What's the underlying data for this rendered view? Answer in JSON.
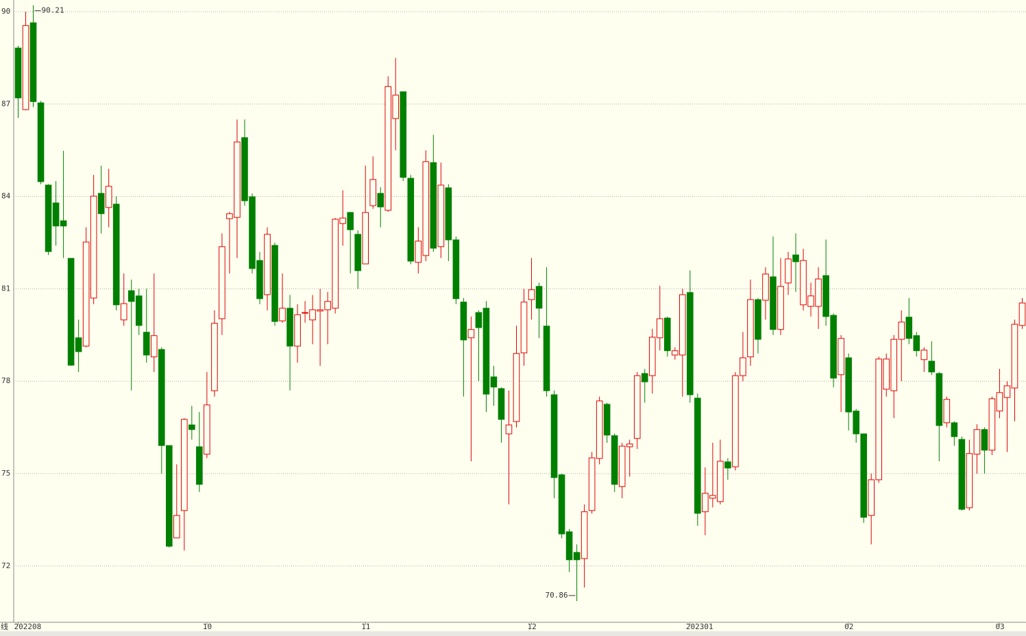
{
  "chart_data": {
    "type": "candlestick",
    "period_label": "日线",
    "categories": [
      "202208",
      null,
      null,
      null,
      null,
      null,
      null,
      null,
      null,
      null,
      null,
      null,
      null,
      null,
      null,
      null,
      null,
      null,
      null,
      null,
      null,
      null,
      null,
      null,
      null,
      "10",
      null,
      null,
      null,
      null,
      null,
      null,
      null,
      null,
      null,
      null,
      null,
      null,
      null,
      null,
      null,
      null,
      null,
      null,
      null,
      null,
      "11",
      null,
      null,
      null,
      null,
      null,
      null,
      null,
      null,
      null,
      null,
      null,
      null,
      null,
      null,
      null,
      null,
      null,
      null,
      null,
      null,
      null,
      "12",
      null,
      null,
      null,
      null,
      null,
      null,
      null,
      null,
      null,
      null,
      null,
      null,
      null,
      null,
      null,
      null,
      null,
      null,
      null,
      null,
      "202301",
      null,
      null,
      null,
      null,
      null,
      null,
      null,
      null,
      null,
      null,
      null,
      null,
      null,
      null,
      null,
      null,
      null,
      null,
      null,
      null,
      "02",
      null,
      null,
      null,
      null,
      null,
      null,
      null,
      null,
      null,
      null,
      null,
      null,
      null,
      null,
      null,
      null,
      null,
      null,
      null,
      "03",
      null,
      null,
      null
    ],
    "open": [
      88.82,
      86.82,
      89.64,
      87.04,
      84.37,
      83.79,
      83.21,
      81.99,
      79.41,
      79.14,
      80.7,
      84.1,
      83.64,
      83.75,
      79.99,
      80.94,
      80.77,
      79.59,
      78.79,
      79.03,
      75.91,
      72.91,
      73.8,
      76.58,
      75.87,
      75.63,
      77.69,
      80.03,
      83.28,
      83.32,
      85.91,
      83.99,
      81.92,
      80.81,
      82.41,
      79.96,
      80.37,
      79.14,
      80.21,
      79.99,
      80.28,
      80.32,
      80.37,
      83.12,
      83.48,
      82.77,
      81.81,
      83.7,
      84.1,
      83.55,
      86.53,
      87.4,
      84.59,
      81.86,
      82.08,
      85.1,
      82.37,
      84.28,
      82.59,
      80.57,
      79.41,
      80.23,
      80.37,
      78.14,
      77.76,
      76.29,
      76.69,
      78.92,
      80.65,
      81.08,
      79.79,
      77.56,
      74.96,
      73.11,
      72.44,
      72.24,
      73.8,
      75.49,
      77.25,
      76.23,
      74.58,
      75.87,
      76.14,
      78.25,
      78.18,
      79.41,
      80.05,
      78.85,
      78.85,
      80.88,
      77.45,
      73.76,
      74.2,
      74.09,
      75.38,
      75.22,
      78.18,
      78.79,
      80.65,
      80.63,
      81.39,
      79.68,
      81.19,
      82.1,
      80.48,
      80.43,
      80.43,
      81.43,
      80.14,
      78.21,
      78.76,
      77.03,
      76.29,
      73.64,
      74.8,
      77.74,
      77.69,
      79.36,
      80.08,
      79.48,
      78.7,
      78.65,
      78.25,
      76.65,
      76.65,
      76.11,
      73.89,
      75.63,
      76.43,
      75.76,
      77.03,
      77.47,
      77.78,
      79.81
    ],
    "high": [
      88.89,
      90.0,
      90.21,
      87.1,
      84.4,
      84.5,
      85.48,
      82.0,
      80.0,
      83.0,
      84.7,
      85.0,
      84.9,
      84.0,
      81.5,
      81.3,
      81.0,
      81.0,
      81.5,
      79.1,
      75.9,
      75.3,
      76.8,
      77.2,
      77.0,
      78.3,
      80.3,
      82.8,
      83.5,
      86.5,
      86.5,
      84.1,
      82.2,
      83.0,
      82.5,
      81.5,
      80.8,
      80.5,
      80.6,
      80.8,
      81.0,
      80.9,
      83.3,
      84.2,
      83.5,
      82.9,
      85.0,
      85.3,
      84.3,
      87.9,
      88.5,
      87.4,
      84.7,
      83.0,
      85.5,
      86.0,
      85.1,
      84.4,
      82.7,
      80.7,
      80.1,
      80.3,
      80.6,
      78.5,
      77.8,
      77.7,
      79.8,
      81.0,
      82.0,
      81.2,
      81.7,
      77.7,
      75.0,
      73.2,
      72.7,
      74.0,
      75.7,
      77.5,
      77.3,
      76.3,
      76.0,
      76.1,
      78.3,
      78.4,
      79.7,
      81.1,
      80.1,
      79.1,
      81.0,
      81.6,
      77.6,
      75.2,
      76.0,
      76.1,
      75.5,
      78.3,
      79.6,
      81.3,
      80.7,
      81.7,
      82.7,
      82.0,
      82.2,
      82.8,
      82.3,
      81.2,
      81.7,
      82.6,
      80.2,
      79.5,
      78.9,
      77.1,
      76.3,
      75.0,
      78.8,
      78.9,
      79.5,
      80.3,
      80.7,
      79.6,
      79.1,
      79.3,
      78.3,
      77.5,
      76.7,
      76.2,
      76.1,
      76.6,
      76.5,
      77.5,
      78.4,
      78.0,
      80.0,
      80.7
    ],
    "low": [
      86.55,
      86.8,
      86.9,
      84.4,
      82.1,
      82.4,
      82.0,
      78.5,
      78.3,
      79.1,
      80.5,
      82.8,
      83.0,
      80.3,
      79.8,
      77.7,
      79.5,
      78.6,
      78.3,
      75.0,
      72.6,
      72.9,
      72.5,
      76.1,
      74.4,
      75.5,
      77.5,
      79.5,
      81.5,
      82.0,
      83.7,
      81.5,
      80.5,
      80.3,
      79.8,
      79.9,
      77.7,
      78.6,
      79.9,
      79.2,
      78.5,
      79.2,
      80.2,
      82.4,
      81.5,
      81.0,
      81.8,
      83.6,
      83.0,
      83.5,
      85.5,
      84.5,
      81.8,
      81.5,
      81.9,
      82.2,
      82.0,
      81.9,
      80.5,
      77.5,
      75.4,
      78.0,
      77.0,
      77.2,
      76.0,
      74.0,
      76.5,
      78.5,
      80.0,
      79.4,
      77.5,
      74.2,
      72.9,
      71.8,
      70.86,
      71.3,
      73.7,
      75.3,
      76.0,
      74.4,
      74.2,
      74.9,
      75.8,
      77.3,
      77.6,
      79.0,
      78.8,
      78.7,
      77.5,
      77.3,
      73.3,
      73.0,
      73.9,
      74.0,
      74.8,
      75.1,
      78.0,
      78.5,
      78.9,
      80.0,
      79.5,
      79.5,
      80.8,
      80.9,
      80.3,
      80.1,
      79.7,
      79.8,
      77.8,
      77.0,
      76.4,
      76.0,
      73.4,
      72.7,
      74.7,
      77.5,
      76.8,
      78.0,
      79.2,
      78.8,
      78.3,
      78.2,
      75.4,
      76.5,
      75.9,
      73.8,
      73.8,
      75.0,
      75.0,
      75.6,
      76.8,
      75.7,
      76.7,
      79.7
    ],
    "close": [
      87.2,
      89.55,
      87.08,
      84.48,
      82.21,
      83.04,
      83.04,
      78.52,
      78.96,
      82.52,
      84.01,
      83.44,
      84.33,
      80.48,
      80.52,
      80.59,
      79.81,
      78.85,
      79.48,
      75.91,
      72.64,
      73.64,
      76.76,
      76.43,
      74.65,
      77.23,
      79.88,
      82.37,
      83.44,
      85.77,
      83.86,
      81.66,
      80.68,
      82.77,
      79.94,
      80.37,
      79.14,
      80.16,
      80.23,
      80.32,
      80.32,
      80.59,
      83.26,
      83.3,
      82.92,
      81.59,
      83.48,
      84.55,
      83.66,
      87.57,
      87.29,
      84.62,
      81.9,
      82.55,
      85.13,
      82.32,
      84.37,
      82.59,
      80.68,
      79.34,
      79.68,
      79.74,
      77.58,
      77.81,
      76.76,
      76.58,
      78.9,
      80.57,
      80.97,
      80.37,
      77.69,
      74.87,
      73.04,
      72.2,
      72.2,
      73.76,
      75.51,
      77.36,
      76.25,
      74.65,
      75.89,
      75.96,
      78.18,
      77.98,
      79.43,
      80.03,
      78.99,
      78.99,
      80.81,
      77.56,
      73.71,
      74.36,
      74.29,
      75.4,
      75.18,
      78.18,
      78.76,
      80.65,
      79.36,
      81.48,
      79.68,
      81.08,
      81.97,
      81.88,
      81.92,
      80.77,
      81.32,
      80.1,
      78.1,
      79.39,
      77.0,
      76.29,
      73.58,
      74.8,
      78.72,
      78.72,
      79.36,
      79.92,
      79.39,
      78.99,
      79.01,
      78.3,
      76.56,
      77.41,
      76.2,
      73.84,
      75.65,
      76.43,
      75.76,
      77.43,
      77.63,
      77.85,
      79.85,
      80.54
    ],
    "up_color": "#e00000",
    "down_color": "#008000",
    "ylim": [
      70.17,
      90.38
    ],
    "yticks": [
      72,
      75,
      78,
      81,
      84,
      87,
      90
    ],
    "grid": true,
    "high_label": 90.21,
    "low_label": 70.86
  }
}
